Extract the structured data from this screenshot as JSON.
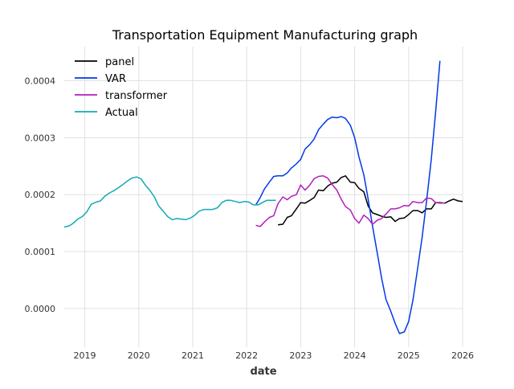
{
  "chart_data": {
    "type": "line",
    "title": "Transportation Equipment Manufacturing graph",
    "xlabel": "date",
    "ylabel": "",
    "xlim": [
      2018.62,
      2026.0
    ],
    "ylim": [
      -6.8e-05,
      0.00046
    ],
    "x_ticks": [
      2019,
      2020,
      2021,
      2022,
      2023,
      2024,
      2025,
      2026
    ],
    "x_tick_labels": [
      "2019",
      "2020",
      "2021",
      "2022",
      "2023",
      "2024",
      "2025",
      "2026"
    ],
    "y_ticks": [
      0.0,
      0.0001,
      0.0002,
      0.0003,
      0.0004
    ],
    "y_tick_labels": [
      "0.0000",
      "0.0001",
      "0.0002",
      "0.0003",
      "0.0004"
    ],
    "grid": true,
    "legend": "top-left",
    "series": [
      {
        "name": "panel",
        "color": "#000000",
        "x": [
          2022.58,
          2022.67,
          2022.75,
          2022.83,
          2022.92,
          2023.0,
          2023.08,
          2023.17,
          2023.25,
          2023.33,
          2023.42,
          2023.5,
          2023.58,
          2023.67,
          2023.75,
          2023.83,
          2023.92,
          2024.0,
          2024.08,
          2024.17,
          2024.25,
          2024.33,
          2024.42,
          2024.5,
          2024.58,
          2024.67,
          2024.75,
          2024.83,
          2024.92,
          2025.0,
          2025.08,
          2025.17,
          2025.25,
          2025.33,
          2025.42,
          2025.5,
          2025.58,
          2025.67,
          2025.75,
          2025.83,
          2025.92,
          2026.0
        ],
        "y": [
          0.000147,
          0.000148,
          0.00016,
          0.000163,
          0.000175,
          0.000186,
          0.000185,
          0.00019,
          0.000195,
          0.000208,
          0.000207,
          0.000215,
          0.00022,
          0.000222,
          0.00023,
          0.000233,
          0.000222,
          0.000221,
          0.000211,
          0.000205,
          0.00018,
          0.000168,
          0.000165,
          0.000162,
          0.00016,
          0.000161,
          0.000153,
          0.000158,
          0.000159,
          0.000165,
          0.000172,
          0.000172,
          0.000168,
          0.000175,
          0.000175,
          0.000186,
          0.000186,
          0.000185,
          0.000189,
          0.000192,
          0.000189,
          0.000188
        ]
      },
      {
        "name": "VAR",
        "color": "#0039e6",
        "x": [
          2022.17,
          2022.25,
          2022.33,
          2022.42,
          2022.5,
          2022.58,
          2022.67,
          2022.75,
          2022.83,
          2022.92,
          2023.0,
          2023.08,
          2023.17,
          2023.25,
          2023.33,
          2023.42,
          2023.5,
          2023.58,
          2023.67,
          2023.75,
          2023.83,
          2023.92,
          2024.0,
          2024.08,
          2024.17,
          2024.25,
          2024.33,
          2024.42,
          2024.5,
          2024.58,
          2024.67,
          2024.75,
          2024.83,
          2024.92,
          2025.0,
          2025.08,
          2025.17,
          2025.25,
          2025.33,
          2025.42,
          2025.5,
          2025.58
        ],
        "y": [
          0.000182,
          0.000195,
          0.00021,
          0.000222,
          0.000232,
          0.000233,
          0.000233,
          0.000238,
          0.000247,
          0.000254,
          0.000262,
          0.00028,
          0.000288,
          0.000298,
          0.000314,
          0.000324,
          0.000332,
          0.000336,
          0.000335,
          0.000337,
          0.000334,
          0.000322,
          0.0003,
          0.000266,
          0.000235,
          0.000192,
          0.000145,
          9.7e-05,
          5.3e-05,
          1.6e-05,
          -5e-06,
          -2.6e-05,
          -4.4e-05,
          -4.1e-05,
          -2.3e-05,
          1.5e-05,
          7.2e-05,
          0.000125,
          0.000187,
          0.000262,
          0.000345,
          0.000435
        ]
      },
      {
        "name": "transformer",
        "color": "#b21fbf",
        "x": [
          2022.17,
          2022.25,
          2022.33,
          2022.42,
          2022.5,
          2022.58,
          2022.67,
          2022.75,
          2022.83,
          2022.92,
          2023.0,
          2023.08,
          2023.17,
          2023.25,
          2023.33,
          2023.42,
          2023.5,
          2023.58,
          2023.67,
          2023.75,
          2023.83,
          2023.92,
          2024.0,
          2024.08,
          2024.17,
          2024.25,
          2024.33,
          2024.42,
          2024.5,
          2024.58,
          2024.67,
          2024.75,
          2024.83,
          2024.92,
          2025.0,
          2025.08,
          2025.17,
          2025.25,
          2025.33,
          2025.42,
          2025.5,
          2025.58,
          2025.67
        ],
        "y": [
          0.000146,
          0.000144,
          0.000152,
          0.00016,
          0.000163,
          0.000184,
          0.000196,
          0.000191,
          0.000197,
          0.0002,
          0.000217,
          0.000208,
          0.000217,
          0.000228,
          0.000232,
          0.000233,
          0.000229,
          0.000218,
          0.000208,
          0.000192,
          0.000179,
          0.000173,
          0.000158,
          0.00015,
          0.000164,
          0.000158,
          0.000148,
          0.000155,
          0.000158,
          0.000166,
          0.000175,
          0.000175,
          0.000177,
          0.000181,
          0.00018,
          0.000188,
          0.000186,
          0.000186,
          0.000194,
          0.000193,
          0.000186,
          0.000185,
          0.000185
        ]
      },
      {
        "name": "Actual",
        "color": "#12aab5",
        "x": [
          2018.62,
          2018.71,
          2018.79,
          2018.87,
          2018.96,
          2019.04,
          2019.12,
          2019.21,
          2019.29,
          2019.37,
          2019.46,
          2019.54,
          2019.62,
          2019.71,
          2019.79,
          2019.87,
          2019.96,
          2020.04,
          2020.12,
          2020.21,
          2020.29,
          2020.37,
          2020.46,
          2020.54,
          2020.62,
          2020.71,
          2020.79,
          2020.87,
          2020.96,
          2021.04,
          2021.12,
          2021.21,
          2021.29,
          2021.37,
          2021.46,
          2021.54,
          2021.62,
          2021.71,
          2021.79,
          2021.87,
          2021.96,
          2022.04,
          2022.12,
          2022.21,
          2022.29,
          2022.37,
          2022.46,
          2022.54
        ],
        "y": [
          0.000143,
          0.000145,
          0.00015,
          0.000157,
          0.000162,
          0.00017,
          0.000183,
          0.000187,
          0.000189,
          0.000197,
          0.000203,
          0.000207,
          0.000212,
          0.000218,
          0.000224,
          0.000229,
          0.000231,
          0.000228,
          0.000217,
          0.000207,
          0.000196,
          0.00018,
          0.00017,
          0.000161,
          0.000156,
          0.000158,
          0.000157,
          0.000156,
          0.000159,
          0.000164,
          0.000171,
          0.000174,
          0.000174,
          0.000174,
          0.000177,
          0.000186,
          0.00019,
          0.00019,
          0.000188,
          0.000186,
          0.000188,
          0.000187,
          0.000182,
          0.000182,
          0.000186,
          0.00019,
          0.00019,
          0.00019
        ]
      }
    ]
  }
}
